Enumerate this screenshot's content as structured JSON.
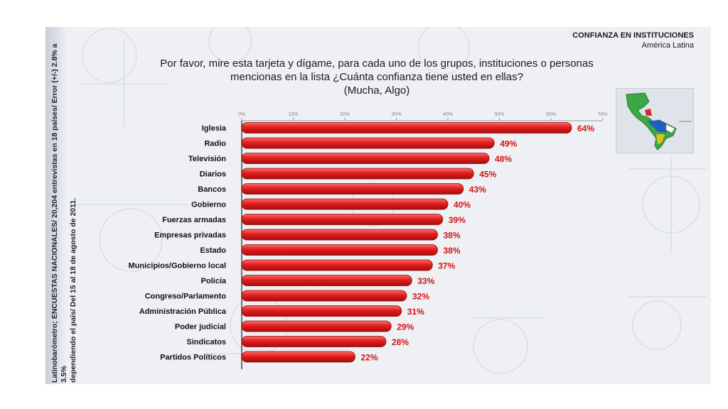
{
  "header": {
    "title": "CONFIANZA EN INSTITUCIONES",
    "subtitle": "América Latina"
  },
  "question": {
    "line1": "Por favor, mire esta tarjeta y dígame, para cada uno de los grupos, instituciones o personas",
    "line2": "mencionas en la lista ¿Cuánta confianza tiene usted en ellas?",
    "line3": "(Mucha, Algo)"
  },
  "source_note": {
    "line1": "Latinobarómetro; ENCUESTAS NACIONALES/ 20,204 entrevistas en 18 países/ Error (+/-) 2.8% a 3.5%",
    "line2": "dependiendo el país/ Del 15 al 18 de agosto de 2011."
  },
  "map": {
    "icon": "latin-america-map-icon"
  },
  "colors": {
    "bar": "#e21e1e",
    "bar_dark": "#a50d0d",
    "label": "#d11414",
    "axis": "#444444"
  },
  "chart_data": {
    "type": "bar",
    "orientation": "horizontal",
    "categories": [
      "Iglesia",
      "Radio",
      "Televisión",
      "Diarios",
      "Bancos",
      "Gobierno",
      "Fuerzas armadas",
      "Empresas privadas",
      "Estado",
      "Municipios/Gobierno local",
      "Policía",
      "Congreso/Parlamento",
      "Administración Pública",
      "Poder judicial",
      "Sindicatos",
      "Partidos Políticos"
    ],
    "values": [
      64,
      49,
      48,
      45,
      43,
      40,
      39,
      38,
      38,
      37,
      33,
      32,
      31,
      29,
      28,
      22
    ],
    "value_labels": [
      "64%",
      "49%",
      "48%",
      "45%",
      "43%",
      "40%",
      "39%",
      "38%",
      "38%",
      "37%",
      "33%",
      "32%",
      "31%",
      "29%",
      "28%",
      "22%"
    ],
    "xticks": [
      "0%",
      "10%",
      "20%",
      "30%",
      "40%",
      "50%",
      "60%",
      "70%"
    ],
    "xlim": [
      0,
      70
    ],
    "grid": false,
    "legend": "none"
  }
}
